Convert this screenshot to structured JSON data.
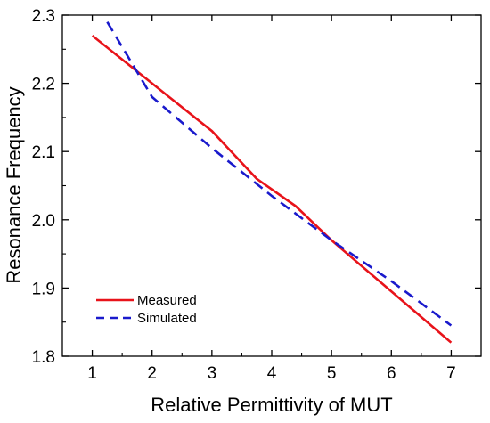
{
  "chart_data": {
    "type": "line",
    "xlabel": "Relative Permittivity of MUT",
    "ylabel": "Resonance Frequency",
    "xlim": [
      0.5,
      7.5
    ],
    "ylim": [
      1.8,
      2.3
    ],
    "xticks": [
      1,
      2,
      3,
      4,
      5,
      6,
      7
    ],
    "yticks": [
      1.8,
      1.9,
      2.0,
      2.1,
      2.2,
      2.3
    ],
    "xtick_labels": [
      "1",
      "2",
      "3",
      "4",
      "5",
      "6",
      "7"
    ],
    "ytick_labels": [
      "1.8",
      "1.9",
      "2.0",
      "2.1",
      "2.2",
      "2.3"
    ],
    "grid": false,
    "legend_position": "bottom-left",
    "series": [
      {
        "name": "Measured",
        "color": "#e8131a",
        "style": "solid",
        "x": [
          1.0,
          2.0,
          3.0,
          3.75,
          4.4,
          5.0,
          6.0,
          7.0
        ],
        "y": [
          2.27,
          2.2,
          2.13,
          2.06,
          2.02,
          1.97,
          1.895,
          1.82
        ]
      },
      {
        "name": "Simulated",
        "color": "#1a1acc",
        "style": "dashed",
        "x": [
          1.25,
          2.0,
          3.0,
          4.0,
          5.0,
          6.0,
          7.0
        ],
        "y": [
          2.29,
          2.18,
          2.105,
          2.035,
          1.97,
          1.91,
          1.845
        ]
      }
    ]
  }
}
